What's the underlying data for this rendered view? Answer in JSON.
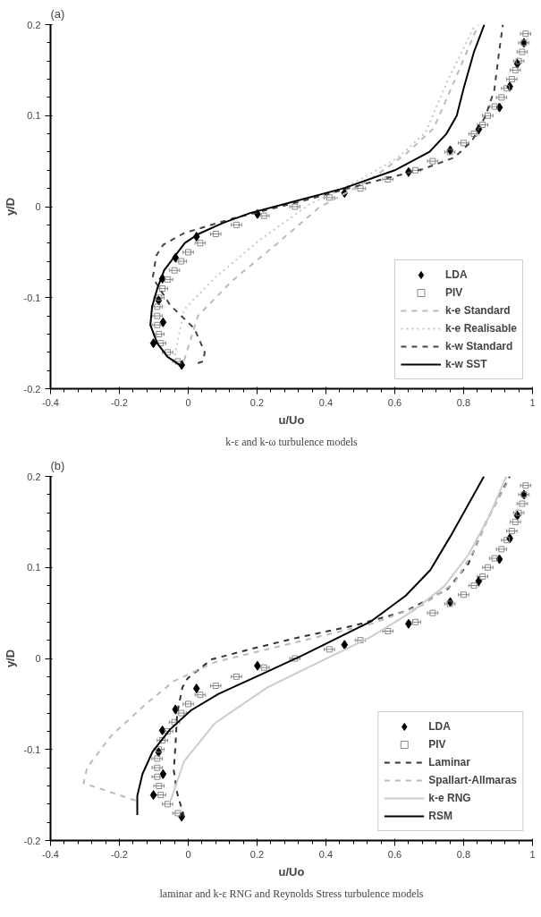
{
  "chart_data": [
    {
      "type": "line",
      "title": "(a)",
      "xlabel": "u/Uo",
      "ylabel": "y/D",
      "annotations": [
        "k-ε and k-ω turbulence models"
      ],
      "xlim": [
        -0.4,
        1
      ],
      "ylim": [
        -0.2,
        0.2
      ],
      "xticks": [
        -0.4,
        -0.2,
        0,
        0.2,
        0.4,
        0.6,
        0.8,
        1
      ],
      "yticks": [
        -0.2,
        -0.1,
        0,
        0.1,
        0.2
      ],
      "grid": false,
      "legend": "bottom right",
      "series": [
        {
          "name": "LDA",
          "type": "scatter",
          "marker": "diamond",
          "color": "#000000",
          "x": [
            0.975,
            0.956,
            0.934,
            0.904,
            0.844,
            0.761,
            0.64,
            0.454,
            0.201,
            0.024,
            -0.037,
            -0.075,
            -0.086,
            -0.073,
            -0.101,
            -0.019
          ],
          "values": [
            0.18,
            0.157,
            0.132,
            0.109,
            0.085,
            0.062,
            0.038,
            0.015,
            -0.008,
            -0.033,
            -0.056,
            -0.079,
            -0.103,
            -0.127,
            -0.15,
            -0.174
          ]
        },
        {
          "name": "PIV",
          "type": "scatter",
          "marker": "square",
          "color": "#888888",
          "x": [
            0.98,
            0.975,
            0.97,
            0.96,
            0.95,
            0.94,
            0.925,
            0.91,
            0.89,
            0.87,
            0.855,
            0.83,
            0.8,
            0.76,
            0.71,
            0.66,
            0.58,
            0.5,
            0.41,
            0.31,
            0.22,
            0.14,
            0.08,
            0.035,
            0.0,
            -0.02,
            -0.04,
            -0.06,
            -0.075,
            -0.085,
            -0.09,
            -0.09,
            -0.09,
            -0.085,
            -0.08,
            -0.06,
            -0.03
          ],
          "values": [
            0.19,
            0.18,
            0.17,
            0.16,
            0.15,
            0.14,
            0.13,
            0.12,
            0.11,
            0.1,
            0.09,
            0.08,
            0.07,
            0.06,
            0.05,
            0.04,
            0.03,
            0.02,
            0.01,
            0.0,
            -0.01,
            -0.02,
            -0.03,
            -0.04,
            -0.05,
            -0.06,
            -0.07,
            -0.08,
            -0.09,
            -0.1,
            -0.11,
            -0.12,
            -0.13,
            -0.14,
            -0.15,
            -0.16,
            -0.17
          ],
          "xerrors": [
            0.015,
            0.015,
            0.015,
            0.015,
            0.015,
            0.015,
            0.015,
            0.015,
            0.015,
            0.015,
            0.015,
            0.015,
            0.015,
            0.015,
            0.015,
            0.015,
            0.015,
            0.015,
            0.015,
            0.015,
            0.015,
            0.015,
            0.015,
            0.015,
            0.015,
            0.015,
            0.015,
            0.015,
            0.015,
            0.015,
            0.015,
            0.015,
            0.015,
            0.015,
            0.015,
            0.015,
            0.015
          ]
        },
        {
          "name": "k-e Standard",
          "line_style": "dashed",
          "color": "#bbbbbb",
          "x": [
            -0.012,
            0.028,
            0.129,
            0.26,
            0.38,
            0.53,
            0.632,
            0.713,
            0.773,
            0.843
          ],
          "values": [
            -0.169,
            -0.12,
            -0.081,
            -0.04,
            -0.001,
            0.03,
            0.058,
            0.086,
            0.138,
            0.2
          ]
        },
        {
          "name": "k-e Realisable",
          "line_style": "dotted",
          "color": "#c8c8c8",
          "x": [
            -0.042,
            -0.012,
            0.078,
            0.21,
            0.35,
            0.51,
            0.61,
            0.69,
            0.753,
            0.833
          ],
          "values": [
            -0.169,
            -0.113,
            -0.078,
            -0.036,
            0.002,
            0.032,
            0.054,
            0.082,
            0.138,
            0.2
          ]
        },
        {
          "name": "k-w Standard",
          "line_style": "dashed",
          "color": "#444444",
          "x": [
            0.028,
            0.043,
            0.048,
            0.018,
            -0.053,
            -0.103,
            -0.093,
            -0.073,
            -0.012,
            0.129,
            0.33,
            0.532,
            0.68,
            0.773,
            0.824,
            0.864,
            0.889,
            0.904,
            0.914
          ],
          "values": [
            -0.172,
            -0.17,
            -0.16,
            -0.134,
            -0.108,
            -0.078,
            -0.054,
            -0.042,
            -0.029,
            -0.013,
            0.006,
            0.027,
            0.041,
            0.054,
            0.072,
            0.1,
            0.128,
            0.173,
            0.2
          ]
        },
        {
          "name": "k-w SST",
          "line_style": "solid",
          "color": "#000000",
          "x": [
            -0.02,
            -0.06,
            -0.09,
            -0.11,
            -0.105,
            -0.09,
            -0.07,
            -0.04,
            -0.01,
            0.03,
            0.1,
            0.18,
            0.3,
            0.45,
            0.6,
            0.7,
            0.75,
            0.78,
            0.8,
            0.83,
            0.86
          ],
          "values": [
            -0.175,
            -0.165,
            -0.15,
            -0.13,
            -0.11,
            -0.09,
            -0.07,
            -0.055,
            -0.04,
            -0.03,
            -0.018,
            -0.007,
            0.005,
            0.02,
            0.04,
            0.06,
            0.08,
            0.1,
            0.13,
            0.17,
            0.2
          ]
        }
      ]
    },
    {
      "type": "line",
      "title": "(b)",
      "xlabel": "u/Uo",
      "ylabel": "y/D",
      "annotations": [
        "laminar and k-ε RNG and Reynolds Stress turbulence models"
      ],
      "xlim": [
        -0.4,
        1
      ],
      "ylim": [
        -0.2,
        0.2
      ],
      "xticks": [
        -0.4,
        -0.2,
        0,
        0.2,
        0.4,
        0.6,
        0.8,
        1
      ],
      "yticks": [
        -0.2,
        -0.1,
        0,
        0.1,
        0.2
      ],
      "grid": false,
      "legend": "bottom right",
      "series": [
        {
          "name": "LDA",
          "type": "scatter",
          "marker": "diamond",
          "color": "#000000",
          "x": [
            0.975,
            0.956,
            0.934,
            0.904,
            0.844,
            0.761,
            0.64,
            0.454,
            0.201,
            0.024,
            -0.037,
            -0.075,
            -0.086,
            -0.073,
            -0.101,
            -0.019
          ],
          "values": [
            0.18,
            0.157,
            0.132,
            0.109,
            0.085,
            0.062,
            0.038,
            0.015,
            -0.008,
            -0.033,
            -0.056,
            -0.079,
            -0.103,
            -0.127,
            -0.15,
            -0.174
          ]
        },
        {
          "name": "PIV",
          "type": "scatter",
          "marker": "square",
          "color": "#888888",
          "x": [
            0.98,
            0.975,
            0.97,
            0.96,
            0.95,
            0.94,
            0.925,
            0.91,
            0.89,
            0.87,
            0.855,
            0.83,
            0.8,
            0.76,
            0.71,
            0.66,
            0.58,
            0.5,
            0.41,
            0.31,
            0.22,
            0.14,
            0.08,
            0.035,
            0.0,
            -0.02,
            -0.04,
            -0.06,
            -0.075,
            -0.085,
            -0.09,
            -0.09,
            -0.09,
            -0.085,
            -0.08,
            -0.06,
            -0.03
          ],
          "values": [
            0.19,
            0.18,
            0.17,
            0.16,
            0.15,
            0.14,
            0.13,
            0.12,
            0.11,
            0.1,
            0.09,
            0.08,
            0.07,
            0.06,
            0.05,
            0.04,
            0.03,
            0.02,
            0.01,
            0.0,
            -0.01,
            -0.02,
            -0.03,
            -0.04,
            -0.05,
            -0.06,
            -0.07,
            -0.08,
            -0.09,
            -0.1,
            -0.11,
            -0.12,
            -0.13,
            -0.14,
            -0.15,
            -0.16,
            -0.17
          ],
          "xerrors": [
            0.015,
            0.015,
            0.015,
            0.015,
            0.015,
            0.015,
            0.015,
            0.015,
            0.015,
            0.015,
            0.015,
            0.015,
            0.015,
            0.015,
            0.015,
            0.015,
            0.015,
            0.015,
            0.015,
            0.015,
            0.015,
            0.015,
            0.015,
            0.015,
            0.015,
            0.015,
            0.015,
            0.015,
            0.015,
            0.015,
            0.015,
            0.015,
            0.015,
            0.015,
            0.015,
            0.015,
            0.015
          ]
        },
        {
          "name": "Laminar",
          "line_style": "dashed",
          "color": "#333333",
          "x": [
            -0.012,
            -0.032,
            -0.042,
            -0.037,
            -0.032,
            -0.017,
            -0.002,
            0.068,
            0.189,
            0.33,
            0.481,
            0.632,
            0.753,
            0.814,
            0.864,
            0.934
          ],
          "values": [
            -0.174,
            -0.148,
            -0.123,
            -0.095,
            -0.06,
            -0.032,
            -0.022,
            -0.001,
            0.011,
            0.024,
            0.036,
            0.052,
            0.076,
            0.104,
            0.149,
            0.2
          ]
        },
        {
          "name": "Spallart-Allmaras",
          "line_style": "dashed",
          "color": "#bbbbbb",
          "x": [
            -0.153,
            -0.304,
            -0.294,
            -0.224,
            -0.123,
            -0.042,
            0.078,
            0.229,
            0.38,
            0.532,
            0.683,
            0.773,
            0.834,
            0.874,
            0.934
          ],
          "values": [
            -0.156,
            -0.137,
            -0.12,
            -0.085,
            -0.05,
            -0.025,
            -0.004,
            0.01,
            0.024,
            0.038,
            0.059,
            0.083,
            0.121,
            0.156,
            0.198
          ]
        },
        {
          "name": "k-e RNG",
          "line_style": "solid",
          "color": "#cccccc",
          "x": [
            -0.053,
            -0.012,
            0.078,
            0.229,
            0.38,
            0.532,
            0.652,
            0.743,
            0.814,
            0.874,
            0.924
          ],
          "values": [
            -0.158,
            -0.113,
            -0.071,
            -0.032,
            -0.004,
            0.024,
            0.052,
            0.079,
            0.114,
            0.156,
            0.2
          ]
        },
        {
          "name": "RSM",
          "line_style": "solid",
          "color": "#000000",
          "x": [
            -0.148,
            -0.148,
            -0.133,
            -0.103,
            -0.053,
            0.008,
            0.088,
            0.209,
            0.33,
            0.431,
            0.532,
            0.632,
            0.703,
            0.763,
            0.859
          ],
          "values": [
            -0.172,
            -0.151,
            -0.127,
            -0.102,
            -0.078,
            -0.057,
            -0.039,
            -0.018,
            0.003,
            0.022,
            0.041,
            0.069,
            0.097,
            0.135,
            0.2
          ]
        }
      ]
    }
  ]
}
